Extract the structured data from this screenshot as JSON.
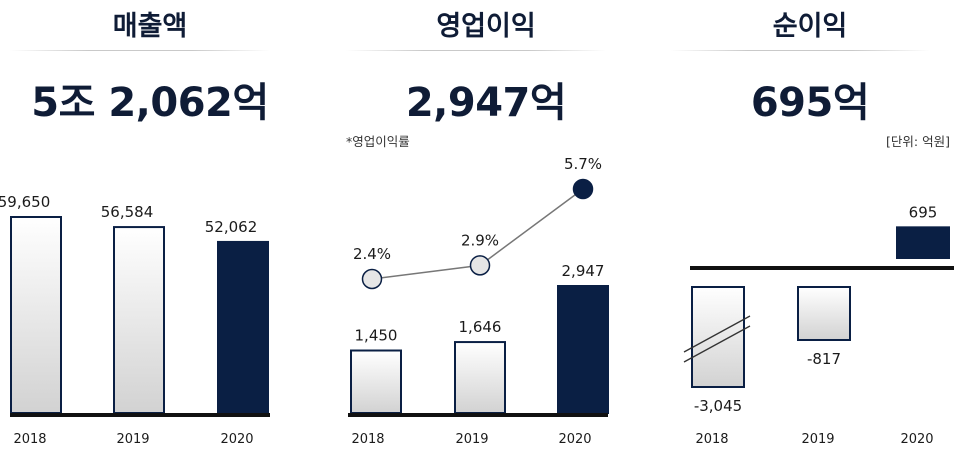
{
  "colors": {
    "navy": "#0a1f44",
    "bar_light_top": "#ffffff",
    "bar_light_bottom": "#d2d2d2"
  },
  "panels": [
    {
      "title": "매출액",
      "headline": "5조 2,062억",
      "note": ""
    },
    {
      "title": "영업이익",
      "headline": "2,947억",
      "note": "*영업이익률"
    },
    {
      "title": "순이익",
      "headline": "695억",
      "note": "[단위: 억원]"
    }
  ],
  "chart_data": [
    {
      "type": "bar",
      "title": "매출액",
      "categories": [
        "2018",
        "2019",
        "2020"
      ],
      "values": [
        59650,
        56584,
        52062
      ],
      "value_labels": [
        "59,650",
        "56,584",
        "52,062"
      ],
      "highlight": "2020",
      "ylim": [
        0,
        62000
      ]
    },
    {
      "type": "bar",
      "title": "영업이익",
      "categories": [
        "2018",
        "2019",
        "2020"
      ],
      "values": [
        1450,
        1646,
        2947
      ],
      "value_labels": [
        "1,450",
        "1,646",
        "2,947"
      ],
      "highlight": "2020",
      "ylim": [
        0,
        4200
      ],
      "line_series": {
        "name": "*영업이익률",
        "values": [
          2.4,
          2.9,
          5.7
        ],
        "value_labels": [
          "2.4%",
          "2.9%",
          "5.7%"
        ],
        "ylim": [
          0,
          7
        ]
      }
    },
    {
      "type": "bar",
      "title": "순이익",
      "categories": [
        "2018",
        "2019",
        "2020"
      ],
      "values": [
        -3045,
        -817,
        695
      ],
      "value_labels": [
        "-3,045",
        "-817",
        "695"
      ],
      "highlight": "2020",
      "axis_break_on": "2018"
    }
  ]
}
